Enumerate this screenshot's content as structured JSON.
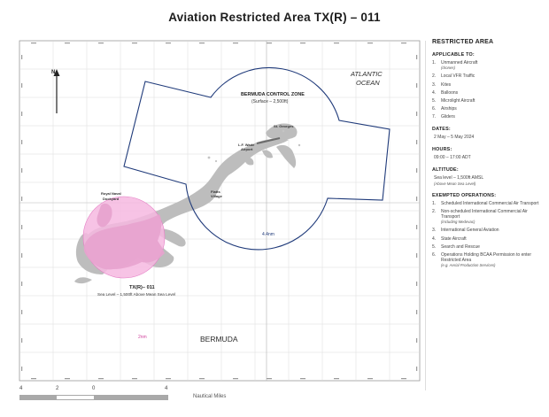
{
  "title": "Aviation Restricted Area TX(R) – 011",
  "map": {
    "north_label": "N",
    "ocean_label_line1": "ATLANTIC",
    "ocean_label_line2": "OCEAN",
    "control_zone_title": "BERMUDA CONTROL ZONE",
    "control_zone_sub": "(Surface – 2,500ft)",
    "place_st_georges": "St. Georges",
    "place_airport_line1": "L.F. Wade",
    "place_airport_line2": "Airport",
    "place_flatts_line1": "Flatts",
    "place_flatts_line2": "Village",
    "place_dockyard_line1": "Royal Naval",
    "place_dockyard_line2": "Dockyard",
    "radius_control_zone": "4.4nm",
    "radius_restricted_area": "2nm",
    "restricted_area_label": "TX(R)– 011",
    "restricted_area_sub": "Sea Level – 1,500ft Above Mean Sea Level",
    "country_label": "BERMUDA",
    "colors": {
      "control_zone": "#1f3a7a",
      "restricted_area_fill": "#f6b8e0",
      "restricted_area_stroke": "#e47cc4",
      "land": "#bdbdbd",
      "grid": "#cfcfcf"
    }
  },
  "panel": {
    "title": "RESTRICTED AREA",
    "applicable_heading": "APPLICABLE TO:",
    "applicable_items": [
      {
        "num": "1.",
        "text": "Unmanned Aircraft",
        "note": "(drones)"
      },
      {
        "num": "2.",
        "text": "Local VFR Traffic",
        "note": ""
      },
      {
        "num": "3.",
        "text": "Kites",
        "note": ""
      },
      {
        "num": "4.",
        "text": "Balloons",
        "note": ""
      },
      {
        "num": "5.",
        "text": "Microlight Aircraft",
        "note": ""
      },
      {
        "num": "6.",
        "text": "Airships",
        "note": ""
      },
      {
        "num": "7.",
        "text": "Gliders",
        "note": ""
      }
    ],
    "dates_heading": "DATES:",
    "dates_value": "2 May – 5 May 2024",
    "hours_heading": "HOURS:",
    "hours_value": "09:00 – 17:00 ADT",
    "altitude_heading": "ALTITUDE:",
    "altitude_value": "Sea level – 1,500ft AMSL",
    "altitude_note": "(Above Mean Sea Level)",
    "exempted_heading": "EXEMPTED OPERATIONS:",
    "exempted_items": [
      {
        "num": "1.",
        "text": "Scheduled International Commercial Air Transport",
        "note": ""
      },
      {
        "num": "2.",
        "text": "Non-scheduled International Commercial Air Transport",
        "note": "(including Medevac)"
      },
      {
        "num": "3.",
        "text": "International General Aviation",
        "note": ""
      },
      {
        "num": "4.",
        "text": "State Aircraft",
        "note": ""
      },
      {
        "num": "5.",
        "text": "Search and Rescue",
        "note": ""
      },
      {
        "num": "6.",
        "text": "Operations Holding BCAA Permission to enter Restricted Area",
        "note": "(e.g. Aerial Production Services)"
      }
    ]
  },
  "scale": {
    "labels": [
      "4",
      "2",
      "0",
      "4"
    ],
    "units": "Nautical Miles"
  }
}
